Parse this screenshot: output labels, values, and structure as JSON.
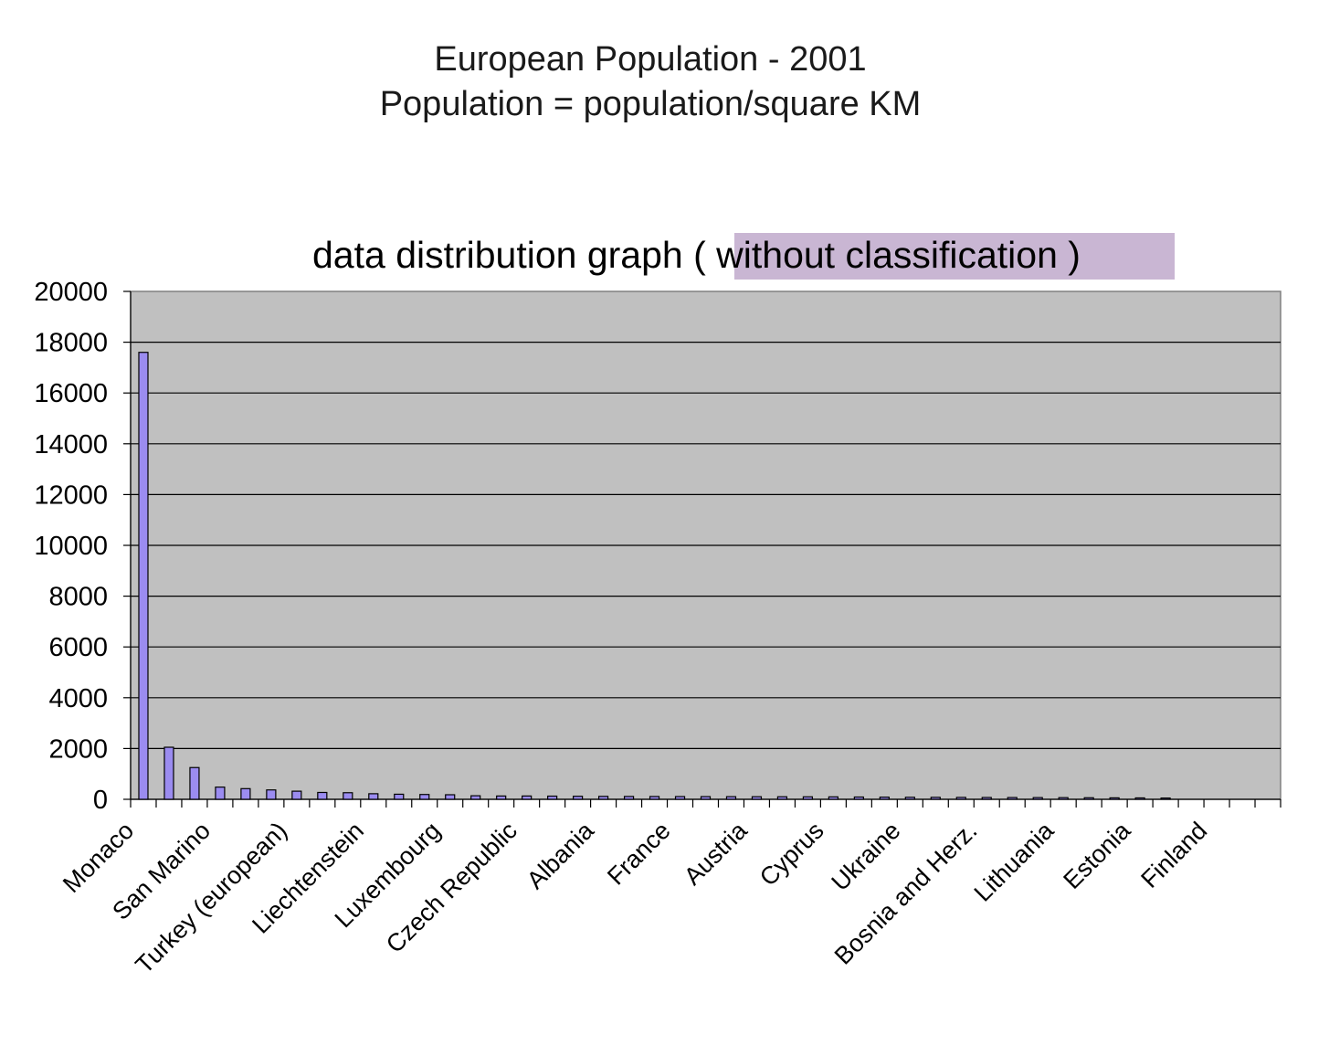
{
  "page": {
    "title_line1": "European Population - 2001",
    "title_line2": "Population = population/square KM"
  },
  "chart_data": {
    "type": "bar",
    "title": "data distribution graph",
    "title_highlight": "( without classification )",
    "xlabel": "",
    "ylabel": "",
    "ylim": [
      0,
      20000
    ],
    "yticks": [
      0,
      2000,
      4000,
      6000,
      8000,
      10000,
      12000,
      14000,
      16000,
      18000,
      20000
    ],
    "grid": true,
    "legend": "none",
    "colors": {
      "bar_fill": "#9B8CF0",
      "bar_stroke": "#000000",
      "plot_background": "#C0C0C0",
      "title_highlight_background": "#C9B6D3"
    },
    "categories": [
      "Monaco",
      "",
      "",
      "San Marino",
      "",
      "",
      "Turkey (european)",
      "",
      "",
      "Liechtenstein",
      "",
      "",
      "Luxembourg",
      "",
      "",
      "Czech Republic",
      "",
      "",
      "Albania",
      "",
      "",
      "France",
      "",
      "",
      "Austria",
      "",
      "",
      "Cyprus",
      "",
      "",
      "Ukraine",
      "",
      "",
      "Bosnia and Herz.",
      "",
      "",
      "Lithuania",
      "",
      "",
      "Estonia",
      "",
      "",
      "Finland",
      "",
      ""
    ],
    "values": [
      17600,
      2050,
      1250,
      480,
      420,
      370,
      320,
      270,
      260,
      220,
      200,
      190,
      180,
      140,
      130,
      130,
      125,
      120,
      115,
      112,
      110,
      108,
      106,
      104,
      102,
      100,
      98,
      96,
      90,
      85,
      80,
      78,
      75,
      72,
      70,
      68,
      66,
      62,
      58,
      55,
      50,
      0,
      0,
      0,
      0
    ]
  }
}
